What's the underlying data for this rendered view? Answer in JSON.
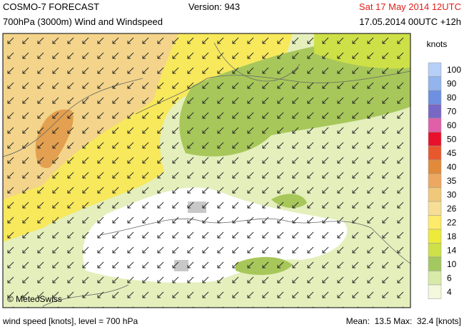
{
  "header": {
    "title": "COSMO-7 FORECAST",
    "version": "Version: 943",
    "valid_time": "Sat 17 May 2014 12UTC",
    "subtitle": "700hPa (3000m) Wind and Windspeed",
    "run": "17.05.2014 00UTC +12h"
  },
  "map": {
    "credit": "© MeteoSwiss"
  },
  "legend": {
    "title": "knots",
    "items": [
      {
        "label": 100,
        "color": "#b6cff6"
      },
      {
        "label": 90,
        "color": "#94b4ee"
      },
      {
        "label": 80,
        "color": "#6d90e0"
      },
      {
        "label": 70,
        "color": "#7868c6"
      },
      {
        "label": 60,
        "color": "#e060a8"
      },
      {
        "label": 50,
        "color": "#e8102a"
      },
      {
        "label": 45,
        "color": "#e8582c"
      },
      {
        "label": 40,
        "color": "#e08a3a"
      },
      {
        "label": 35,
        "color": "#eca860"
      },
      {
        "label": 30,
        "color": "#f0c87a"
      },
      {
        "label": 26,
        "color": "#f6de96"
      },
      {
        "label": 22,
        "color": "#fdeb6a"
      },
      {
        "label": 18,
        "color": "#eeea3a"
      },
      {
        "label": 14,
        "color": "#cde048"
      },
      {
        "label": 10,
        "color": "#a4c860"
      },
      {
        "label": 6,
        "color": "#d8eaa8"
      },
      {
        "label": 4,
        "color": "#f3f8dc"
      }
    ]
  },
  "footer": {
    "level": "wind speed [knots], level = 700 hPa",
    "stats": "Mean:  13.5 Max:  32.4 [knots]"
  }
}
